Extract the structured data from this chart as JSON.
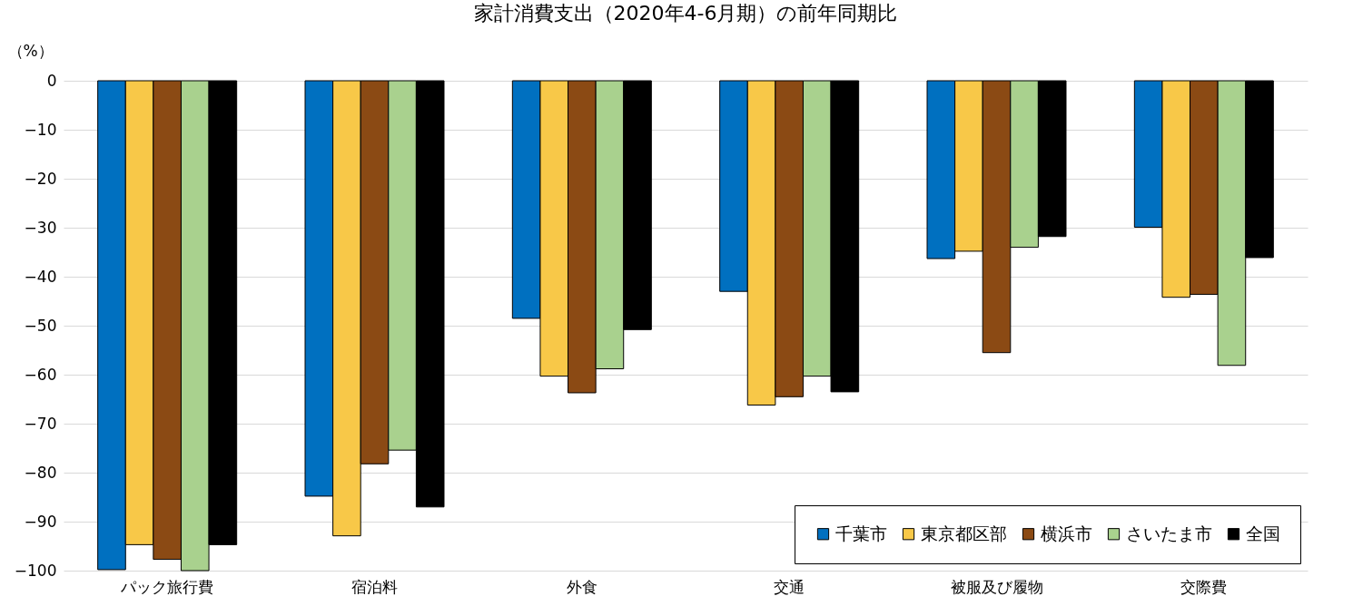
{
  "chart_data": {
    "type": "bar",
    "title": "家計消費支出（2020年4-6月期）の前年同期比",
    "ylabel": "（%）",
    "categories": [
      "パック旅行費",
      "宿泊料",
      "外食",
      "交通",
      "被服及び履物",
      "交際費"
    ],
    "series": [
      {
        "name": "千葉市",
        "color": "#0070c0",
        "values": [
          -99.8,
          -84.8,
          -48.5,
          -43.0,
          -36.3,
          -29.9
        ]
      },
      {
        "name": "東京都区部",
        "color": "#f8c848",
        "values": [
          -94.7,
          -92.9,
          -60.3,
          -66.2,
          -34.8,
          -44.2
        ]
      },
      {
        "name": "横浜市",
        "color": "#8b4a14",
        "values": [
          -97.7,
          -78.2,
          -63.7,
          -64.5,
          -55.5,
          -43.6
        ]
      },
      {
        "name": "さいたま市",
        "color": "#a9d18e",
        "values": [
          -100,
          -75.4,
          -58.8,
          -60.3,
          -34.0,
          -58.1
        ]
      },
      {
        "name": "全国",
        "color": "#000000",
        "values": [
          -94.7,
          -87.0,
          -50.8,
          -63.5,
          -31.8,
          -36.1
        ]
      }
    ],
    "ylim": [
      -100,
      0
    ],
    "yticks": [
      0,
      -10,
      -20,
      -30,
      -40,
      -50,
      -60,
      -70,
      -80,
      -90,
      -100
    ],
    "grid": "y",
    "legend": "bottom right"
  }
}
